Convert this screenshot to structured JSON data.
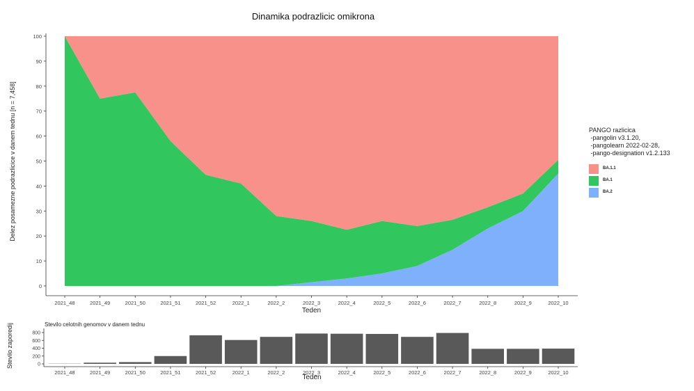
{
  "colors": {
    "ba11": "#f8918a",
    "ba1": "#31c75e",
    "ba2": "#7fb0fb",
    "bar": "#595959"
  },
  "chart_data": [
    {
      "type": "area",
      "stacked": true,
      "title": "Dinamika podrazlicic omikrona",
      "xlabel": "Teden",
      "ylabel": "Delez posamezne podrazlicice v danem tednu [n = 7,458]",
      "ylim": [
        0,
        100
      ],
      "yticks": [
        "0",
        "10",
        "20",
        "30",
        "40",
        "50",
        "60",
        "70",
        "80",
        "90",
        "100"
      ],
      "grid": false,
      "legend_position": "right",
      "categories": [
        "2021_48",
        "2021_49",
        "2021_50",
        "2021_51",
        "2021_52",
        "2022_1",
        "2022_2",
        "2022_3",
        "2022_4",
        "2022_5",
        "2022_6",
        "2022_7",
        "2022_8",
        "2022_9",
        "2022_10"
      ],
      "series": [
        {
          "name": "BA.2",
          "values": [
            0,
            0,
            0,
            0,
            0,
            0,
            0,
            1.5,
            3,
            5,
            8,
            14.5,
            23,
            30,
            45
          ]
        },
        {
          "name": "BA.1",
          "values": [
            100,
            75,
            77.5,
            58,
            44.5,
            41,
            28,
            24.5,
            19.5,
            21,
            16,
            12,
            8.5,
            7,
            5.5
          ]
        },
        {
          "name": "BA.1.1",
          "values": [
            0,
            25,
            22.5,
            42,
            55.5,
            59,
            72,
            74,
            77.5,
            74,
            76,
            73.5,
            68.5,
            63,
            49.5
          ]
        }
      ]
    },
    {
      "type": "bar",
      "title": "Stevilo celotnih genomov v danem tednu",
      "xlabel": "Teden",
      "ylabel": "Stevilo zaporedij",
      "ylim": [
        0,
        800
      ],
      "yticks": [
        "0",
        "200",
        "400",
        "600",
        "800"
      ],
      "categories": [
        "2021_48",
        "2021_49",
        "2021_50",
        "2021_51",
        "2021_52",
        "2022_1",
        "2022_2",
        "2022_3",
        "2022_4",
        "2022_5",
        "2022_6",
        "2022_7",
        "2022_8",
        "2022_9",
        "2022_10"
      ],
      "values": [
        5,
        30,
        45,
        200,
        730,
        610,
        690,
        775,
        770,
        765,
        690,
        790,
        385,
        385,
        390
      ]
    }
  ],
  "legend": {
    "title": "PANGO razlicica\n -pangolin v3.1.20,\n -pangolearn 2022-02-28,\n -pango-designation v1.2.133",
    "items": [
      "BA.1.1",
      "BA.1",
      "BA.2"
    ]
  }
}
